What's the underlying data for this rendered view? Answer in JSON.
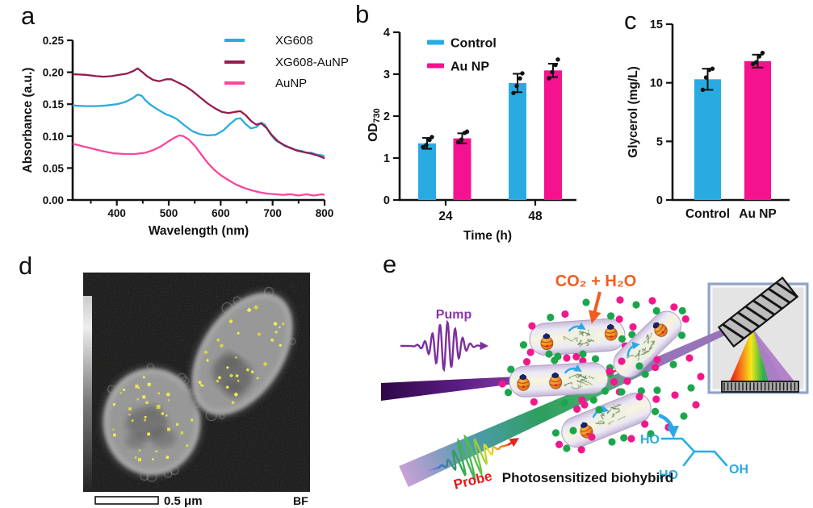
{
  "figure": {
    "panel_labels": {
      "a": "a",
      "b": "b",
      "c": "c",
      "d": "d",
      "e": "e"
    }
  },
  "palette": {
    "cyan": "#29abe2",
    "magenta": "#f5128f",
    "maroon": "#951c4f",
    "pink": "#f8479c",
    "orange": "#f25c22",
    "purple": "#7d2f9e",
    "purple_text": "#8b35a8",
    "red": "#e81818",
    "green_dot": "#1ca64c",
    "magenta_dot": "#f2188c",
    "cyan_text": "#29abe2",
    "nanoparticle_yellow": "#e6e636",
    "axis_black": "#111111"
  },
  "chart_data": [
    {
      "id": "a",
      "type": "line",
      "title": "",
      "xlabel": "Wavelength (nm)",
      "ylabel": "Absorbance (a.u.)",
      "xlim": [
        315,
        800
      ],
      "ylim": [
        0,
        0.25
      ],
      "grid": false,
      "xticks": [
        400,
        500,
        600,
        700,
        800
      ],
      "xticks_minor": [
        350,
        450,
        550,
        650,
        750
      ],
      "ytick_values": [
        0,
        0.05,
        0.1,
        0.15,
        0.2,
        0.25
      ],
      "ytick_labels": [
        "0.00",
        "0.05",
        "0.10",
        "0.15",
        "0.20",
        "0.25"
      ],
      "legend_position": "top-right-inside",
      "series": [
        {
          "name": "XG608",
          "color": "#29abe2",
          "x": [
            315,
            340,
            360,
            380,
            400,
            415,
            430,
            440,
            448,
            455,
            465,
            480,
            495,
            505,
            515,
            530,
            545,
            560,
            575,
            590,
            605,
            618,
            630,
            638,
            648,
            658,
            668,
            678,
            685,
            695,
            705,
            715,
            725,
            735,
            745,
            755,
            765,
            775,
            785,
            795,
            800
          ],
          "y": [
            0.148,
            0.147,
            0.147,
            0.148,
            0.15,
            0.153,
            0.159,
            0.165,
            0.163,
            0.156,
            0.149,
            0.141,
            0.134,
            0.131,
            0.127,
            0.117,
            0.108,
            0.103,
            0.101,
            0.102,
            0.109,
            0.119,
            0.127,
            0.128,
            0.119,
            0.112,
            0.114,
            0.121,
            0.118,
            0.104,
            0.094,
            0.089,
            0.084,
            0.082,
            0.078,
            0.077,
            0.074,
            0.074,
            0.071,
            0.07,
            0.068
          ]
        },
        {
          "name": "XG608-AuNP",
          "color": "#951c4f",
          "x": [
            315,
            340,
            360,
            375,
            390,
            405,
            420,
            432,
            440,
            448,
            458,
            470,
            482,
            495,
            505,
            515,
            530,
            545,
            560,
            575,
            590,
            602,
            615,
            628,
            638,
            648,
            658,
            668,
            678,
            688,
            698,
            710,
            722,
            735,
            748,
            760,
            772,
            785,
            795,
            800
          ],
          "y": [
            0.197,
            0.196,
            0.194,
            0.193,
            0.194,
            0.196,
            0.198,
            0.202,
            0.206,
            0.201,
            0.194,
            0.188,
            0.186,
            0.189,
            0.189,
            0.185,
            0.179,
            0.171,
            0.161,
            0.151,
            0.143,
            0.138,
            0.136,
            0.138,
            0.139,
            0.133,
            0.124,
            0.118,
            0.12,
            0.113,
            0.102,
            0.092,
            0.086,
            0.081,
            0.077,
            0.075,
            0.073,
            0.07,
            0.067,
            0.065
          ]
        },
        {
          "name": "AuNP",
          "color": "#f8479c",
          "x": [
            315,
            335,
            355,
            375,
            395,
            415,
            435,
            455,
            470,
            485,
            500,
            510,
            520,
            528,
            538,
            550,
            562,
            575,
            588,
            600,
            615,
            630,
            645,
            660,
            675,
            690,
            705,
            720,
            735,
            750,
            765,
            780,
            795,
            800
          ],
          "y": [
            0.088,
            0.084,
            0.08,
            0.076,
            0.073,
            0.072,
            0.072,
            0.074,
            0.078,
            0.084,
            0.092,
            0.097,
            0.101,
            0.1,
            0.095,
            0.085,
            0.072,
            0.058,
            0.047,
            0.039,
            0.031,
            0.024,
            0.019,
            0.015,
            0.012,
            0.01,
            0.009,
            0.008,
            0.009,
            0.007,
            0.009,
            0.007,
            0.009,
            0.008
          ]
        }
      ]
    },
    {
      "id": "b",
      "type": "bar",
      "title": "",
      "xlabel": "Time (h)",
      "ylabel_prefix": "OD",
      "ylabel_sub": "730",
      "ylim": [
        0,
        4
      ],
      "yticks": [
        0,
        1,
        2,
        3,
        4
      ],
      "categories": [
        "24",
        "48"
      ],
      "legend_position": "top-left-inside",
      "series": [
        {
          "name": "Control",
          "color": "#29abe2",
          "values": [
            1.35,
            2.79
          ],
          "errors": [
            0.13,
            0.22
          ],
          "points": [
            [
              1.26,
              1.31,
              1.43,
              1.5
            ],
            [
              2.55,
              2.72,
              2.9,
              3.02
            ]
          ]
        },
        {
          "name": "Au NP",
          "color": "#f5128f",
          "values": [
            1.47,
            3.09
          ],
          "errors": [
            0.12,
            0.16
          ],
          "points": [
            [
              1.38,
              1.44,
              1.6,
              1.63
            ],
            [
              2.9,
              3.05,
              3.22,
              3.35
            ]
          ]
        }
      ]
    },
    {
      "id": "c",
      "type": "bar",
      "title": "",
      "xlabel": "",
      "ylabel": "Glycerol (mg/L)",
      "ylim": [
        0,
        15
      ],
      "yticks": [
        0,
        5,
        10,
        15
      ],
      "bars": [
        {
          "label": "Control",
          "color": "#29abe2",
          "value": 10.3,
          "error": 0.9,
          "points": [
            9.4,
            10.45,
            11.1,
            11.2
          ]
        },
        {
          "label": "Au NP",
          "color": "#f5128f",
          "value": 11.85,
          "error": 0.55,
          "points": [
            11.6,
            11.75,
            12.25,
            12.55
          ]
        }
      ]
    }
  ],
  "panel_d": {
    "scalebar_label": "0.5 μm",
    "mode_label": "BF",
    "cells": [
      {
        "name": "cell-lower-left",
        "dots": 36
      },
      {
        "name": "cell-upper-right",
        "dots": 32
      }
    ]
  },
  "panel_e": {
    "labels": {
      "pump": "Pump",
      "probe": "Probe",
      "reactants": "CO₂ + H₂O",
      "caption": "Photosensitized biohybird",
      "glycerol_ho_top": "HO",
      "glycerol_ho_bottom": "HO",
      "glycerol_oh": "OH"
    },
    "icons": {
      "pump-pulse-icon": "purple femtosecond pulse waveform with arrow",
      "probe-pulse-icon": "rainbow supercontinuum pulse waveform with red arrow",
      "laser-beam-pump": "dark purple tapered beam",
      "laser-beam-probe": "lavender-teal-violet tapered beam",
      "diffraction-grating-icon": "gray hatched tilted slab",
      "rainbow-dispersion-icon": "red-to-violet spectral fan",
      "detector-array-icon": "striped sensor bar",
      "bacterium-cell": "lavender capsule",
      "photosensitizer-icon": "orange barrel with navy cap",
      "enzyme-icon": "sage-green ribbon cluster",
      "electron-arrow-icon": "small blue curved arrow",
      "nanoparticle-dot": "green/magenta circles"
    }
  }
}
